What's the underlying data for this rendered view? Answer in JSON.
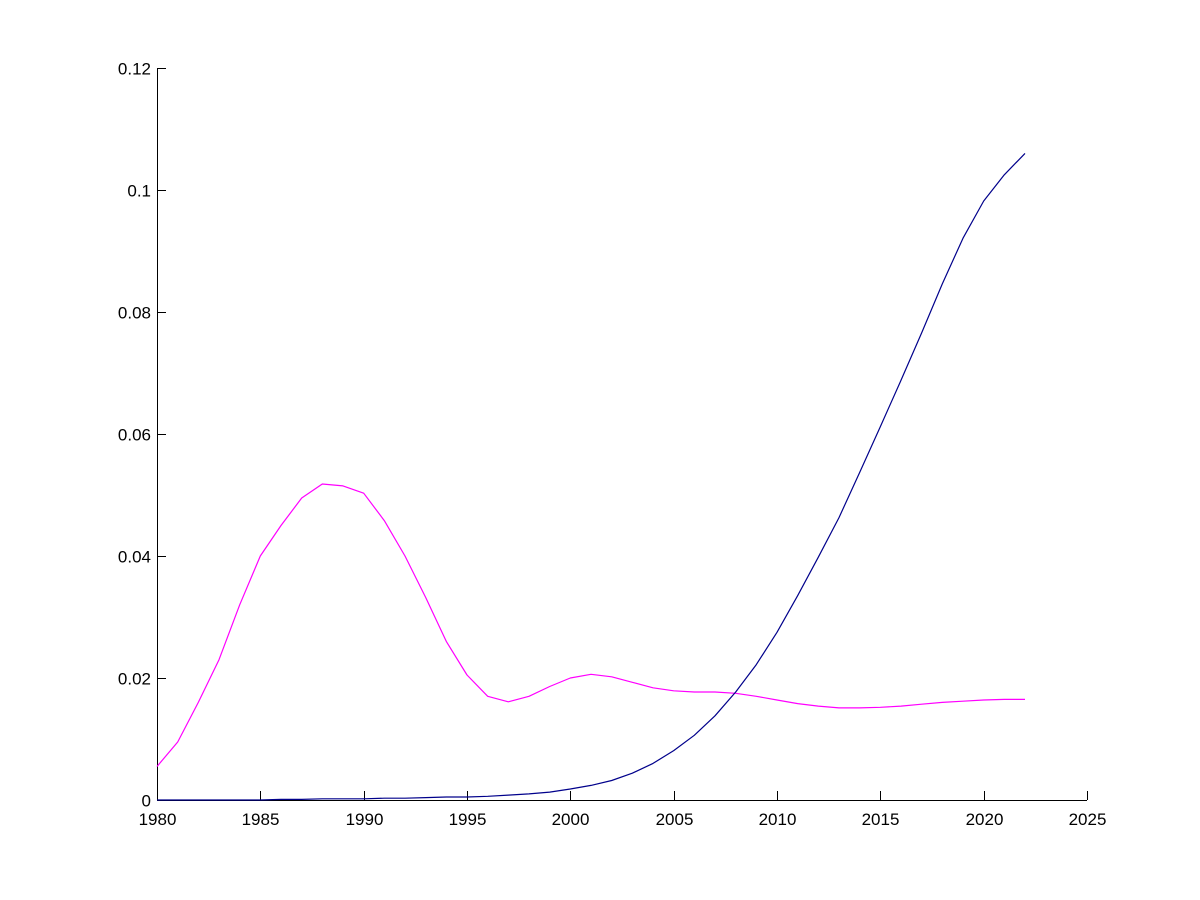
{
  "chart_data": {
    "type": "line",
    "title": "",
    "xlabel": "",
    "ylabel": "",
    "xlim": [
      1980,
      2025
    ],
    "ylim": [
      0,
      0.12
    ],
    "x_ticks": [
      "1980",
      "1985",
      "1990",
      "1995",
      "2000",
      "2005",
      "2010",
      "2015",
      "2020",
      "2025"
    ],
    "y_ticks": [
      "0",
      "0.02",
      "0.04",
      "0.06",
      "0.08",
      "0.1",
      "0.12"
    ],
    "grid": false,
    "legend": "none",
    "series": [
      {
        "color": "#ff00ff",
        "x": [
          1980,
          1981,
          1982,
          1983,
          1984,
          1985,
          1986,
          1987,
          1988,
          1989,
          1990,
          1991,
          1992,
          1993,
          1994,
          1995,
          1996,
          1997,
          1998,
          1999,
          2000,
          2001,
          2002,
          2003,
          2004,
          2005,
          2006,
          2007,
          2008,
          2009,
          2010,
          2011,
          2012,
          2013,
          2014,
          2015,
          2016,
          2017,
          2018,
          2019,
          2020,
          2021,
          2022
        ],
        "y": [
          0.0055,
          0.0095,
          0.016,
          0.023,
          0.032,
          0.04,
          0.045,
          0.0495,
          0.0518,
          0.0515,
          0.0503,
          0.0458,
          0.04,
          0.0332,
          0.026,
          0.0205,
          0.017,
          0.0161,
          0.017,
          0.0186,
          0.02,
          0.0206,
          0.0202,
          0.0193,
          0.0184,
          0.0179,
          0.0177,
          0.0177,
          0.0175,
          0.017,
          0.0164,
          0.0158,
          0.0154,
          0.0151,
          0.0151,
          0.0152,
          0.0154,
          0.0157,
          0.016,
          0.0162,
          0.0164,
          0.0165,
          0.0165
        ]
      },
      {
        "color": "#00008b",
        "x": [
          1980,
          1981,
          1982,
          1983,
          1984,
          1985,
          1986,
          1987,
          1988,
          1989,
          1990,
          1991,
          1992,
          1993,
          1994,
          1995,
          1996,
          1997,
          1998,
          1999,
          2000,
          2001,
          2002,
          2003,
          2004,
          2005,
          2006,
          2007,
          2008,
          2009,
          2010,
          2011,
          2012,
          2013,
          2014,
          2015,
          2016,
          2017,
          2018,
          2019,
          2020,
          2021,
          2022
        ],
        "y": [
          0,
          0,
          0,
          0,
          0,
          0,
          0.0001,
          0.0001,
          0.0002,
          0.0002,
          0.0002,
          0.0003,
          0.0003,
          0.0004,
          0.0005,
          0.0005,
          0.0006,
          0.0008,
          0.001,
          0.0013,
          0.0018,
          0.0024,
          0.0032,
          0.0044,
          0.006,
          0.0081,
          0.0106,
          0.0138,
          0.0177,
          0.0222,
          0.0275,
          0.0335,
          0.0398,
          0.0463,
          0.0537,
          0.0612,
          0.0688,
          0.0766,
          0.0846,
          0.0921,
          0.0982,
          0.1025,
          0.106
        ]
      }
    ]
  }
}
